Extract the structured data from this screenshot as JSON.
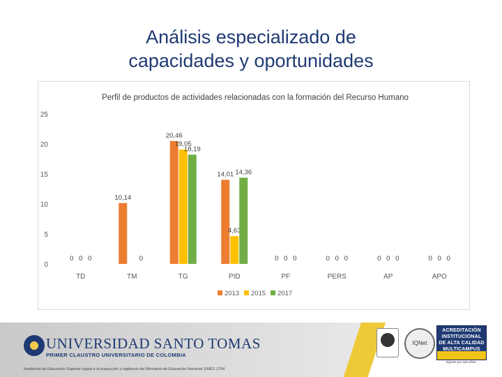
{
  "slide": {
    "title_line1": "Análisis especializado de",
    "title_line2": "capacidades y oportunidades"
  },
  "chart_data": {
    "type": "bar",
    "title": "Perfil de productos de actividades relacionadas con la formación del Recurso Humano",
    "xlabel": "",
    "ylabel": "",
    "categories": [
      "TD",
      "TM",
      "TG",
      "PID",
      "PF",
      "PERS",
      "AP",
      "APO"
    ],
    "series": [
      {
        "name": "2013",
        "color": "#ed7d31",
        "values": [
          0,
          10.14,
          20.46,
          14.01,
          0,
          0,
          0,
          0
        ],
        "labels": [
          "0",
          "10,14",
          "20,46",
          "14,01",
          "0",
          "0",
          "0",
          "0"
        ]
      },
      {
        "name": "2015",
        "color": "#ffc000",
        "values": [
          0,
          0,
          19.05,
          4.63,
          0,
          0,
          0,
          0
        ],
        "labels": [
          "0",
          "",
          "19,05",
          "4,63",
          "0",
          "0",
          "0",
          "0"
        ]
      },
      {
        "name": "2017",
        "color": "#70ad47",
        "values": [
          0,
          0,
          18.19,
          14.36,
          0,
          0,
          0,
          0
        ],
        "labels": [
          "0",
          "0",
          "18,19",
          "14,36",
          "0",
          "0",
          "0",
          "0"
        ]
      }
    ],
    "ylim": [
      0,
      25
    ],
    "yticks": [
      "0",
      "5",
      "10",
      "15",
      "20",
      "25"
    ],
    "grid": false,
    "legend": "bottom"
  },
  "footer": {
    "university_name": "UNIVERSIDAD SANTO TOMAS",
    "university_subtitle": "PRIMER CLAUSTRO UNIVERSITARIO DE COLOMBIA",
    "institution_note": "Institución de Educación Superior sujeta a la inspección y vigilancia del Ministerio de Educación Nacional SNIES 1704.",
    "accreditation_lines": [
      "ACREDITACIÓN",
      "INSTITUCIONAL",
      "DE ALTA CALIDAD",
      "MULTICAMPUS"
    ],
    "accreditation_note": "Vigente por seis años",
    "iqnet_label": "IQNet"
  }
}
